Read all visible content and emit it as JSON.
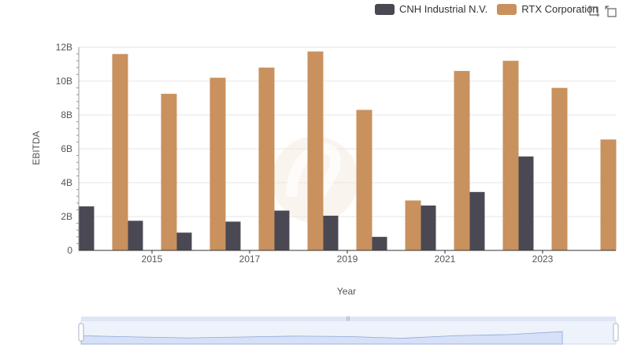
{
  "chart_data": {
    "type": "bar",
    "title": "",
    "xlabel": "Year",
    "ylabel": "EBITDA",
    "ylim": [
      0,
      12000000000
    ],
    "yticks": [
      "0",
      "2B",
      "4B",
      "6B",
      "8B",
      "10B",
      "12B"
    ],
    "xticks": [
      "2015",
      "2017",
      "2019",
      "2021",
      "2023"
    ],
    "categories": [
      "2014",
      "2015",
      "2016",
      "2017",
      "2018",
      "2019",
      "2020",
      "2021",
      "2022",
      "2023",
      "2024"
    ],
    "series": [
      {
        "name": "CNH Industrial N.V.",
        "color": "#4a4953",
        "values": [
          2600000000,
          1750000000,
          1050000000,
          1700000000,
          2350000000,
          2050000000,
          800000000,
          2650000000,
          3450000000,
          5550000000,
          null
        ]
      },
      {
        "name": "RTX Corporation",
        "color": "#c9915e",
        "values": [
          11600000000,
          9250000000,
          10200000000,
          10800000000,
          11750000000,
          8300000000,
          2950000000,
          10600000000,
          11200000000,
          9600000000,
          6550000000
        ]
      }
    ],
    "grid": true,
    "legend": "top-right"
  },
  "toolbox": {
    "zoom_icon": "zoom-icon",
    "restore_icon": "restore-icon"
  }
}
